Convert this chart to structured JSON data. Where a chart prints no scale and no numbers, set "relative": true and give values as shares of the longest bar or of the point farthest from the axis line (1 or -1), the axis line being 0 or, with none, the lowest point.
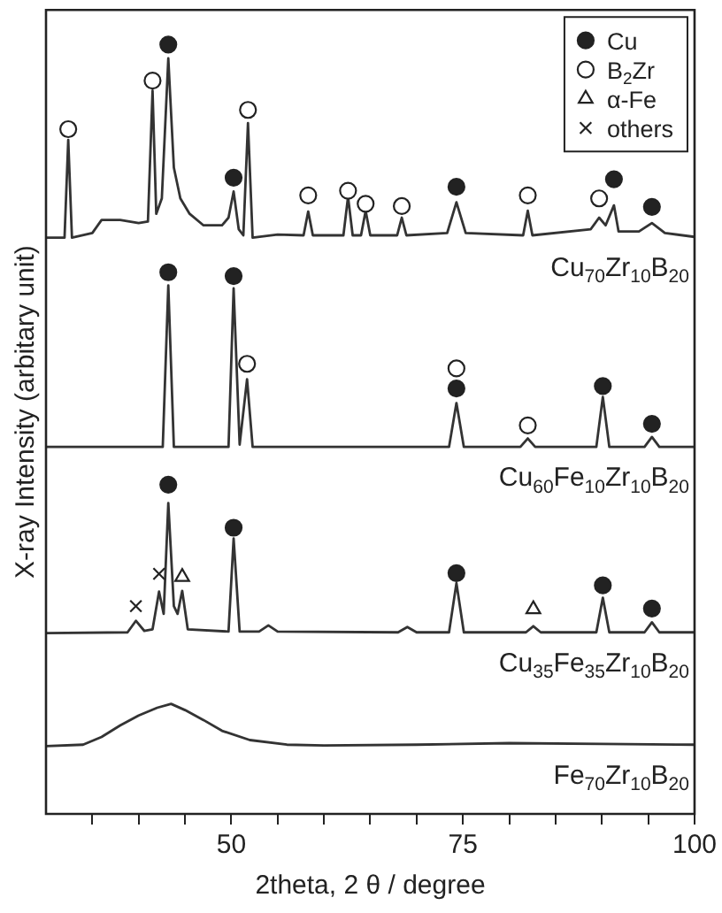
{
  "chart_data": {
    "type": "line",
    "relative": true,
    "xlabel": "2theta, 2 θ / degree",
    "ylabel": "X-ray Intensity (arbitary unit)",
    "xlim": [
      30,
      100
    ],
    "xticks": [
      {
        "value": 35,
        "label": null
      },
      {
        "value": 40,
        "label": null
      },
      {
        "value": 45,
        "label": null
      },
      50,
      {
        "value": 55,
        "label": null
      },
      {
        "value": 60,
        "label": null
      },
      {
        "value": 65,
        "label": null
      },
      {
        "value": 70,
        "label": null
      },
      75,
      {
        "value": 80,
        "label": null
      },
      {
        "value": 85,
        "label": null
      },
      {
        "value": 90,
        "label": null
      },
      {
        "value": 95,
        "label": null
      },
      100
    ],
    "legend": "top right",
    "line_style": "solid",
    "series": [
      {
        "name": "Cu$_{70}$Zr$_{10}$B$_{20}$",
        "color": "#333333",
        "x": [
          30,
          32.0,
          32.4,
          32.8,
          35,
          36,
          38,
          40,
          41.0,
          41.5,
          41.9,
          42.5,
          43.2,
          43.8,
          44.5,
          45.5,
          47,
          49,
          49.7,
          50.25,
          50.8,
          51.3,
          51.8,
          52.3,
          55,
          57.8,
          58.3,
          58.8,
          62.1,
          62.6,
          63.1,
          64.0,
          64.5,
          65.0,
          67.9,
          68.4,
          68.9,
          73.3,
          74.3,
          75.3,
          81.5,
          82.0,
          82.5,
          88.8,
          89.7,
          90.4,
          91.3,
          91.8,
          94,
          95.4,
          96.8,
          100
        ],
        "values": [
          0.749,
          0.749,
          0.876,
          0.749,
          0.755,
          0.772,
          0.772,
          0.768,
          0.77,
          0.94,
          0.78,
          0.8,
          0.982,
          0.84,
          0.8,
          0.78,
          0.765,
          0.765,
          0.775,
          0.809,
          0.76,
          0.752,
          0.898,
          0.749,
          0.753,
          0.752,
          0.783,
          0.752,
          0.752,
          0.802,
          0.752,
          0.752,
          0.784,
          0.752,
          0.752,
          0.775,
          0.752,
          0.755,
          0.795,
          0.755,
          0.752,
          0.784,
          0.752,
          0.76,
          0.775,
          0.765,
          0.791,
          0.757,
          0.757,
          0.768,
          0.755,
          0.75
        ]
      },
      {
        "name": "Cu$_{60}$Fe$_{10}$Zr$_{10}$B$_{20}$",
        "color": "#333333",
        "x": [
          30,
          42.6,
          43.2,
          43.8,
          49.7,
          50.25,
          50.9,
          51.7,
          52.3,
          73.5,
          74.3,
          75.1,
          81.2,
          82.0,
          82.8,
          89.4,
          90.1,
          90.8,
          94.6,
          95.4,
          96.2,
          100
        ],
        "values": [
          0.477,
          0.477,
          0.687,
          0.477,
          0.477,
          0.683,
          0.48,
          0.565,
          0.477,
          0.477,
          0.534,
          0.477,
          0.477,
          0.488,
          0.477,
          0.477,
          0.542,
          0.477,
          0.477,
          0.49,
          0.477,
          0.477
        ]
      },
      {
        "name": "Cu$_{35}$Fe$_{35}$Zr$_{10}$B$_{20}$",
        "color": "#333333",
        "x": [
          30,
          38.8,
          39.7,
          40.6,
          41.5,
          42.2,
          42.7,
          43.2,
          43.8,
          44.2,
          44.7,
          45.3,
          49.7,
          50.25,
          50.9,
          53,
          54,
          55,
          68,
          69,
          70,
          73.5,
          74.3,
          75.1,
          81.8,
          82.6,
          83.4,
          89.4,
          90.1,
          90.8,
          94.6,
          95.4,
          96.2,
          100
        ],
        "values": [
          0.235,
          0.236,
          0.251,
          0.238,
          0.24,
          0.289,
          0.26,
          0.404,
          0.27,
          0.26,
          0.29,
          0.24,
          0.237,
          0.358,
          0.237,
          0.237,
          0.245,
          0.237,
          0.236,
          0.243,
          0.236,
          0.236,
          0.3,
          0.236,
          0.236,
          0.244,
          0.236,
          0.236,
          0.281,
          0.236,
          0.236,
          0.249,
          0.236,
          0.236
        ]
      },
      {
        "name": "Fe$_{70}$Zr$_{10}$B$_{20}$",
        "color": "#333333",
        "x": [
          30,
          34,
          36,
          38,
          40,
          42,
          43.5,
          45,
          47,
          49,
          52,
          56,
          60,
          70,
          80,
          90,
          100
        ],
        "values": [
          0.088,
          0.09,
          0.1,
          0.115,
          0.128,
          0.138,
          0.143,
          0.135,
          0.122,
          0.108,
          0.096,
          0.09,
          0.089,
          0.09,
          0.092,
          0.091,
          0.09
        ]
      },
      {
        "type": "scatter",
        "name": "Cu",
        "marker": "circle",
        "color": "#222222",
        "x": [
          43.2,
          50.25,
          74.3,
          91.3,
          95.4,
          43.2,
          50.25,
          74.3,
          90.1,
          95.4,
          43.2,
          50.25,
          74.3,
          90.1,
          95.4
        ],
        "values": [
          1.0,
          0.827,
          0.815,
          0.825,
          0.789,
          0.704,
          0.699,
          0.553,
          0.556,
          0.507,
          0.428,
          0.372,
          0.313,
          0.297,
          0.267
        ]
      },
      {
        "type": "scatter",
        "name": "B$_{2}$Zr",
        "marker": "circle",
        "color": "#ffffff",
        "x": [
          32.4,
          41.5,
          51.8,
          58.3,
          62.6,
          64.5,
          68.4,
          82.0,
          89.7,
          51.7,
          74.3,
          82.0
        ],
        "values": [
          0.89,
          0.953,
          0.915,
          0.804,
          0.81,
          0.793,
          0.79,
          0.804,
          0.8,
          0.585,
          0.579,
          0.505
        ]
      },
      {
        "type": "scatter",
        "name": "α-Fe",
        "marker": "triangle",
        "color": "#ffffff",
        "x": [
          44.7,
          82.6
        ],
        "values": [
          0.308,
          0.266
        ]
      },
      {
        "type": "scatter",
        "name": "others",
        "marker": "cross",
        "color": "#222222",
        "x": [
          39.7,
          42.2
        ],
        "values": [
          0.27,
          0.312
        ]
      }
    ]
  }
}
